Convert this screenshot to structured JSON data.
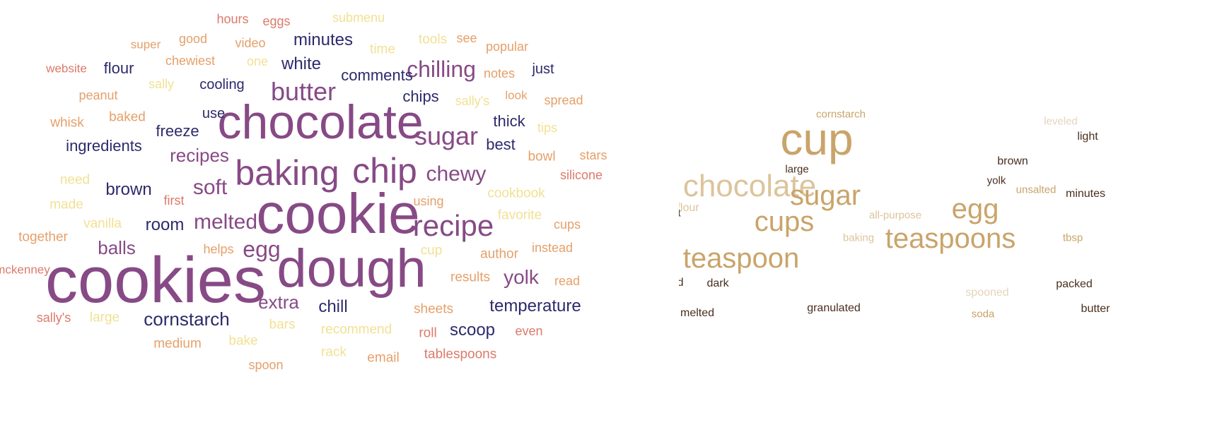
{
  "palette": {
    "navy": "#2d2a6b",
    "purple": "#874a86",
    "rose": "#dc7a6b",
    "orange": "#e5a06a",
    "yellow": "#f1e194",
    "tan": "#c9a46a",
    "sand": "#dcc49c",
    "dark_brown": "#4a2e1e",
    "pale": "#e4d4bc"
  },
  "left_cloud": {
    "words": [
      {
        "text": "cookies",
        "color": "purple",
        "size": 92
      },
      {
        "text": "cookie",
        "color": "purple",
        "size": 80
      },
      {
        "text": "dough",
        "color": "purple",
        "size": 76
      },
      {
        "text": "chocolate",
        "color": "purple",
        "size": 68
      },
      {
        "text": "baking",
        "color": "purple",
        "size": 50
      },
      {
        "text": "chip",
        "color": "purple",
        "size": 50
      },
      {
        "text": "recipe",
        "color": "purple",
        "size": 42
      },
      {
        "text": "butter",
        "color": "purple",
        "size": 36
      },
      {
        "text": "sugar",
        "color": "purple",
        "size": 36
      },
      {
        "text": "chilling",
        "color": "purple",
        "size": 32
      },
      {
        "text": "chewy",
        "color": "purple",
        "size": 30
      },
      {
        "text": "soft",
        "color": "purple",
        "size": 30
      },
      {
        "text": "melted",
        "color": "purple",
        "size": 30
      },
      {
        "text": "egg",
        "color": "purple",
        "size": 32
      },
      {
        "text": "yolk",
        "color": "purple",
        "size": 28
      },
      {
        "text": "extra",
        "color": "purple",
        "size": 26
      },
      {
        "text": "recipes",
        "color": "purple",
        "size": 26
      },
      {
        "text": "balls",
        "color": "purple",
        "size": 26
      },
      {
        "text": "cornstarch",
        "color": "navy",
        "size": 26
      },
      {
        "text": "temperature",
        "color": "navy",
        "size": 24
      },
      {
        "text": "scoop",
        "color": "navy",
        "size": 24
      },
      {
        "text": "chill",
        "color": "navy",
        "size": 24
      },
      {
        "text": "room",
        "color": "navy",
        "size": 24
      },
      {
        "text": "brown",
        "color": "navy",
        "size": 24
      },
      {
        "text": "ingredients",
        "color": "navy",
        "size": 22
      },
      {
        "text": "freeze",
        "color": "navy",
        "size": 22
      },
      {
        "text": "minutes",
        "color": "navy",
        "size": 24
      },
      {
        "text": "comments",
        "color": "navy",
        "size": 22
      },
      {
        "text": "white",
        "color": "navy",
        "size": 24
      },
      {
        "text": "chips",
        "color": "navy",
        "size": 22
      },
      {
        "text": "thick",
        "color": "navy",
        "size": 22
      },
      {
        "text": "best",
        "color": "navy",
        "size": 22
      },
      {
        "text": "flour",
        "color": "navy",
        "size": 22
      },
      {
        "text": "cooling",
        "color": "navy",
        "size": 20
      },
      {
        "text": "use",
        "color": "navy",
        "size": 20
      },
      {
        "text": "just",
        "color": "navy",
        "size": 20
      },
      {
        "text": "hours",
        "color": "rose",
        "size": 18
      },
      {
        "text": "eggs",
        "color": "rose",
        "size": 18
      },
      {
        "text": "video",
        "color": "orange",
        "size": 18
      },
      {
        "text": "good",
        "color": "orange",
        "size": 18
      },
      {
        "text": "super",
        "color": "orange",
        "size": 17
      },
      {
        "text": "website",
        "color": "rose",
        "size": 17
      },
      {
        "text": "chewiest",
        "color": "orange",
        "size": 18
      },
      {
        "text": "peanut",
        "color": "orange",
        "size": 18
      },
      {
        "text": "whisk",
        "color": "orange",
        "size": 19
      },
      {
        "text": "baked",
        "color": "orange",
        "size": 19
      },
      {
        "text": "notes",
        "color": "orange",
        "size": 18
      },
      {
        "text": "popular",
        "color": "orange",
        "size": 18
      },
      {
        "text": "look",
        "color": "orange",
        "size": 17
      },
      {
        "text": "spread",
        "color": "orange",
        "size": 18
      },
      {
        "text": "stars",
        "color": "orange",
        "size": 18
      },
      {
        "text": "bowl",
        "color": "orange",
        "size": 19
      },
      {
        "text": "silicone",
        "color": "rose",
        "size": 18
      },
      {
        "text": "first",
        "color": "rose",
        "size": 18
      },
      {
        "text": "using",
        "color": "orange",
        "size": 18
      },
      {
        "text": "cups",
        "color": "orange",
        "size": 18
      },
      {
        "text": "author",
        "color": "orange",
        "size": 19
      },
      {
        "text": "instead",
        "color": "orange",
        "size": 18
      },
      {
        "text": "together",
        "color": "orange",
        "size": 19
      },
      {
        "text": "helps",
        "color": "orange",
        "size": 18
      },
      {
        "text": "results",
        "color": "orange",
        "size": 19
      },
      {
        "text": "read",
        "color": "orange",
        "size": 18
      },
      {
        "text": "mckenney",
        "color": "rose",
        "size": 17
      },
      {
        "text": "sally's",
        "color": "rose",
        "size": 18
      },
      {
        "text": "sheets",
        "color": "orange",
        "size": 19
      },
      {
        "text": "roll",
        "color": "rose",
        "size": 19
      },
      {
        "text": "even",
        "color": "rose",
        "size": 18
      },
      {
        "text": "medium",
        "color": "orange",
        "size": 19
      },
      {
        "text": "email",
        "color": "orange",
        "size": 19
      },
      {
        "text": "tablespoons",
        "color": "rose",
        "size": 19
      },
      {
        "text": "spoon",
        "color": "orange",
        "size": 18
      },
      {
        "text": "submenu",
        "color": "yellow",
        "size": 18
      },
      {
        "text": "tools",
        "color": "yellow",
        "size": 19
      },
      {
        "text": "see",
        "color": "orange",
        "size": 18
      },
      {
        "text": "time",
        "color": "yellow",
        "size": 19
      },
      {
        "text": "one",
        "color": "yellow",
        "size": 18
      },
      {
        "text": "sally",
        "color": "yellow",
        "size": 18
      },
      {
        "text": "sally's",
        "color": "yellow",
        "size": 18
      },
      {
        "text": "tips",
        "color": "yellow",
        "size": 18
      },
      {
        "text": "need",
        "color": "yellow",
        "size": 19
      },
      {
        "text": "made",
        "color": "yellow",
        "size": 19
      },
      {
        "text": "vanilla",
        "color": "yellow",
        "size": 19
      },
      {
        "text": "cookbook",
        "color": "yellow",
        "size": 19
      },
      {
        "text": "favorite",
        "color": "yellow",
        "size": 19
      },
      {
        "text": "cup",
        "color": "yellow",
        "size": 19
      },
      {
        "text": "large",
        "color": "yellow",
        "size": 19
      },
      {
        "text": "bars",
        "color": "yellow",
        "size": 19
      },
      {
        "text": "recommend",
        "color": "yellow",
        "size": 19
      },
      {
        "text": "bake",
        "color": "yellow",
        "size": 19
      },
      {
        "text": "rack",
        "color": "yellow",
        "size": 19
      }
    ]
  },
  "right_cloud": {
    "words": [
      {
        "text": "cup",
        "color": "tan",
        "size": 64
      },
      {
        "text": "chocolate",
        "color": "sand",
        "size": 44
      },
      {
        "text": "sugar",
        "color": "tan",
        "size": 40
      },
      {
        "text": "cups",
        "color": "tan",
        "size": 40
      },
      {
        "text": "egg",
        "color": "tan",
        "size": 40
      },
      {
        "text": "teaspoons",
        "color": "tan",
        "size": 40
      },
      {
        "text": "teaspoon",
        "color": "tan",
        "size": 40
      },
      {
        "text": "cornstarch",
        "color": "tan",
        "size": 15
      },
      {
        "text": "leveled",
        "color": "pale",
        "size": 15
      },
      {
        "text": "light",
        "color": "dark_brown",
        "size": 16
      },
      {
        "text": "brown",
        "color": "dark_brown",
        "size": 16
      },
      {
        "text": "large",
        "color": "dark_brown",
        "size": 15
      },
      {
        "text": "yolk",
        "color": "dark_brown",
        "size": 15
      },
      {
        "text": "unsalted",
        "color": "tan",
        "size": 15
      },
      {
        "text": "minutes",
        "color": "dark_brown",
        "size": 16
      },
      {
        "text": "salt",
        "color": "dark_brown",
        "size": 15
      },
      {
        "text": "flour",
        "color": "sand",
        "size": 16
      },
      {
        "text": "all-purpose",
        "color": "sand",
        "size": 15
      },
      {
        "text": "baking",
        "color": "sand",
        "size": 15
      },
      {
        "text": "tbsp",
        "color": "tan",
        "size": 15
      },
      {
        "text": "cooled",
        "color": "dark_brown",
        "size": 16
      },
      {
        "text": "dark",
        "color": "dark_brown",
        "size": 16
      },
      {
        "text": "spooned",
        "color": "pale",
        "size": 16
      },
      {
        "text": "packed",
        "color": "dark_brown",
        "size": 16
      },
      {
        "text": "melted",
        "color": "dark_brown",
        "size": 16
      },
      {
        "text": "granulated",
        "color": "dark_brown",
        "size": 16
      },
      {
        "text": "soda",
        "color": "tan",
        "size": 15
      },
      {
        "text": "butter",
        "color": "dark_brown",
        "size": 16
      }
    ]
  }
}
